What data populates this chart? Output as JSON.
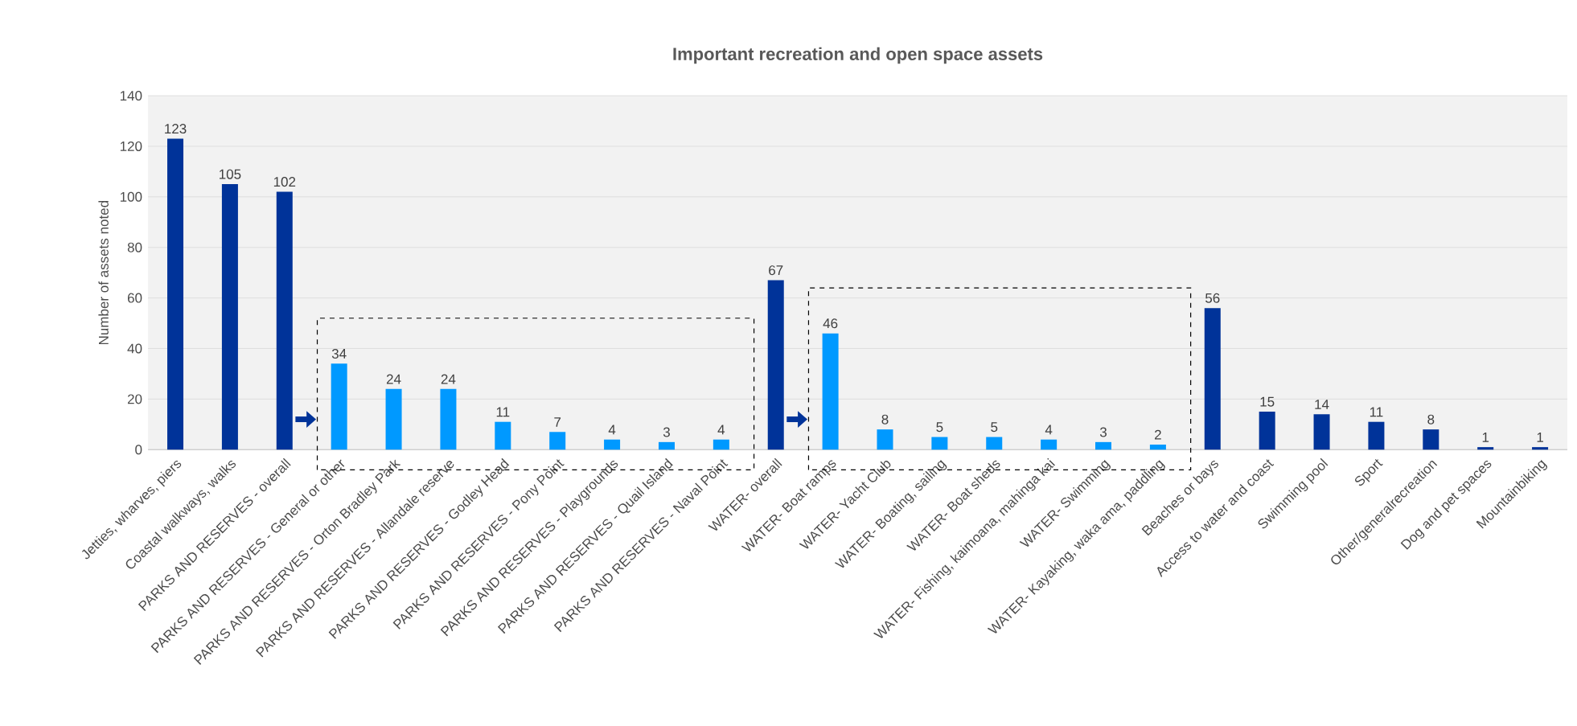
{
  "chart_data": {
    "type": "bar",
    "title": "Important recreation and open space assets",
    "ylabel": "Number of assets noted",
    "categories": [
      "Jetties, wharves, piers",
      "Coastal walkways, walks",
      "PARKS AND RESERVES - overall",
      "PARKS AND RESERVES - General or other",
      "PARKS AND RESERVES - Orton Bradley Park",
      "PARKS AND RESERVES - Allandale reserve",
      "PARKS AND RESERVES - Godley Head",
      "PARKS AND RESERVES - Pony Point",
      "PARKS AND RESERVES - Playgrounds",
      "PARKS AND RESERVES - Quail Island",
      "PARKS AND RESERVES - Naval Point",
      "WATER- overall",
      "WATER- Boat ramps",
      "WATER- Yacht Club",
      "WATER- Boating, sailing",
      "WATER- Boat sheds",
      "WATER- Fishing, kaimoana, mahinga kai",
      "WATER- Swimming",
      "WATER- Kayaking, waka ama, paddling",
      "Beaches or bays",
      "Access to water and coast",
      "Swimming pool",
      "Sport",
      "Other/generalrecreation",
      "Dog and pet spaces",
      "Mountainbiking"
    ],
    "values": [
      123,
      105,
      102,
      34,
      24,
      24,
      11,
      7,
      4,
      3,
      4,
      67,
      46,
      8,
      5,
      5,
      4,
      3,
      2,
      56,
      15,
      14,
      11,
      8,
      1,
      1
    ],
    "colors": [
      "#003399",
      "#003399",
      "#003399",
      "#0099ff",
      "#0099ff",
      "#0099ff",
      "#0099ff",
      "#0099ff",
      "#0099ff",
      "#0099ff",
      "#0099ff",
      "#003399",
      "#0099ff",
      "#0099ff",
      "#0099ff",
      "#0099ff",
      "#0099ff",
      "#0099ff",
      "#0099ff",
      "#003399",
      "#003399",
      "#003399",
      "#003399",
      "#003399",
      "#003399",
      "#003399"
    ],
    "ylim": [
      0,
      140
    ],
    "yticks": [
      0,
      20,
      40,
      60,
      80,
      100,
      120,
      140
    ],
    "grid": "y",
    "data_labels": true
  }
}
